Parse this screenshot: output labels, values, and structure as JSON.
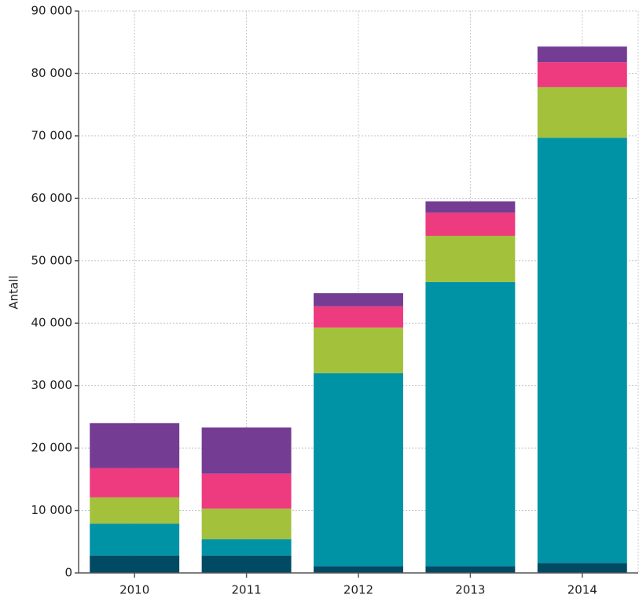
{
  "chart_data": {
    "type": "stacked-bar",
    "y_label": "Antall",
    "categories": [
      "2010",
      "2011",
      "2012",
      "2013",
      "2014"
    ],
    "series": [
      {
        "color": "#004a63",
        "values": [
          2800,
          2800,
          1100,
          1100,
          1600
        ]
      },
      {
        "color": "#0093a6",
        "values": [
          5100,
          2600,
          30900,
          45500,
          68100
        ]
      },
      {
        "color": "#a3c13b",
        "values": [
          4200,
          4900,
          7300,
          7400,
          8100
        ]
      },
      {
        "color": "#ee3a7f",
        "values": [
          4700,
          5600,
          3400,
          3700,
          4000
        ]
      },
      {
        "color": "#743c93",
        "values": [
          7200,
          7400,
          2100,
          1800,
          2500
        ]
      }
    ],
    "ylim": [
      0,
      90000
    ],
    "yticks": [
      0,
      {
        "value": 10000,
        "label": "10 000"
      },
      {
        "value": 20000,
        "label": "20 000"
      },
      {
        "value": 30000,
        "label": "30 000"
      },
      {
        "value": 40000,
        "label": "40 000"
      },
      {
        "value": 50000,
        "label": "50 000"
      },
      {
        "value": 60000,
        "label": "60 000"
      },
      {
        "value": 70000,
        "label": "70 000"
      },
      {
        "value": 80000,
        "label": "80 000"
      },
      {
        "value": 90000,
        "label": "90 000"
      }
    ],
    "grid": true
  }
}
